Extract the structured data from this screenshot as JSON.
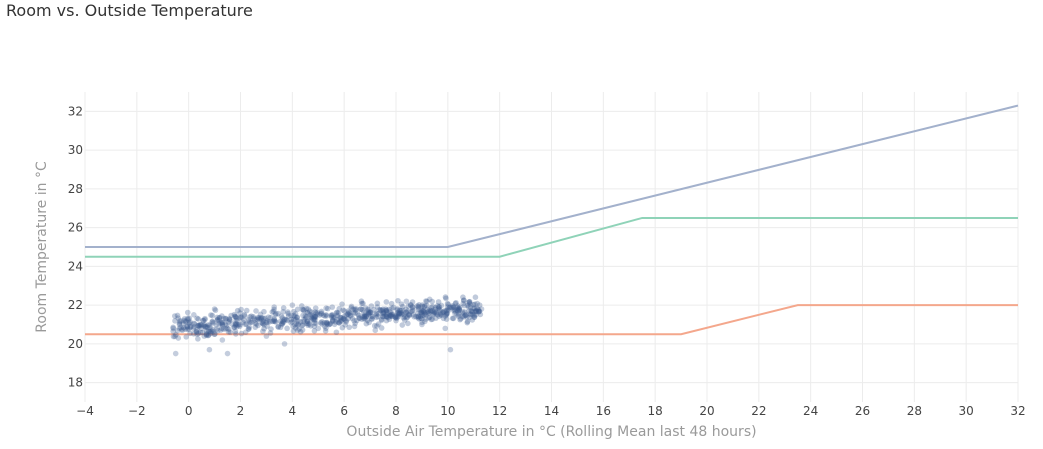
{
  "chart_data": {
    "type": "scatter",
    "title": "Room vs. Outside Temperature",
    "xlabel": "Outside Air Temperature in °C (Rolling Mean last 48 hours)",
    "ylabel": "Room Temperature in °C",
    "xlim": [
      -4,
      32
    ],
    "ylim": [
      17,
      33
    ],
    "xticks": [
      -4,
      -2,
      0,
      2,
      4,
      6,
      8,
      10,
      12,
      14,
      16,
      18,
      20,
      22,
      24,
      26,
      28,
      30,
      32
    ],
    "xtick_labels": [
      "−4",
      "−2",
      "0",
      "2",
      "4",
      "6",
      "8",
      "10",
      "12",
      "14",
      "16",
      "18",
      "20",
      "22",
      "24",
      "26",
      "28",
      "30",
      "32"
    ],
    "yticks": [
      18,
      20,
      22,
      24,
      26,
      28,
      30,
      32
    ],
    "ytick_labels": [
      "18",
      "20",
      "22",
      "24",
      "26",
      "28",
      "30",
      "32"
    ],
    "grid": true,
    "lines": [
      {
        "color": "#a3b1cc",
        "x": [
          -4,
          10,
          32
        ],
        "y": [
          25,
          25,
          32.3
        ]
      },
      {
        "color": "#8fd3b8",
        "x": [
          -4,
          12,
          17.5,
          32
        ],
        "y": [
          24.5,
          24.5,
          26.5,
          26.5
        ]
      },
      {
        "color": "#f4a78c",
        "x": [
          -4,
          19,
          23.5,
          32
        ],
        "y": [
          20.5,
          20.5,
          22,
          22
        ]
      }
    ],
    "scatter": {
      "color": "#3b5b8f",
      "x_range": [
        -0.6,
        11.3
      ],
      "y_trend": {
        "start": 20.9,
        "end": 21.8
      },
      "points": [
        [
          -0.5,
          19.5
        ],
        [
          0.8,
          19.7
        ],
        [
          1.5,
          19.5
        ],
        [
          3.7,
          20.0
        ],
        [
          10.1,
          19.7
        ],
        [
          -0.4,
          20.3
        ],
        [
          0.2,
          21.5
        ],
        [
          0.6,
          20.4
        ],
        [
          1.0,
          21.8
        ],
        [
          1.3,
          20.2
        ],
        [
          1.8,
          21.4
        ],
        [
          2.2,
          20.6
        ],
        [
          2.6,
          21.7
        ],
        [
          3.0,
          20.4
        ],
        [
          3.3,
          21.9
        ],
        [
          3.6,
          21.0
        ],
        [
          4.0,
          22.0
        ],
        [
          4.2,
          20.7
        ],
        [
          4.6,
          21.6
        ],
        [
          5.0,
          20.8
        ],
        [
          5.3,
          21.5
        ],
        [
          5.7,
          20.6
        ],
        [
          6.0,
          21.7
        ],
        [
          6.4,
          20.9
        ],
        [
          6.8,
          21.3
        ],
        [
          7.2,
          20.7
        ],
        [
          7.6,
          21.8
        ],
        [
          8.0,
          21.2
        ],
        [
          8.4,
          22.2
        ],
        [
          8.7,
          21.4
        ],
        [
          9.0,
          21.0
        ],
        [
          9.3,
          22.3
        ],
        [
          9.6,
          21.5
        ],
        [
          9.9,
          20.8
        ],
        [
          10.2,
          21.9
        ],
        [
          10.5,
          21.3
        ],
        [
          10.8,
          21.9
        ],
        [
          11.1,
          21.7
        ],
        [
          11.3,
          21.8
        ],
        [
          7.0,
          21.6
        ]
      ]
    }
  }
}
